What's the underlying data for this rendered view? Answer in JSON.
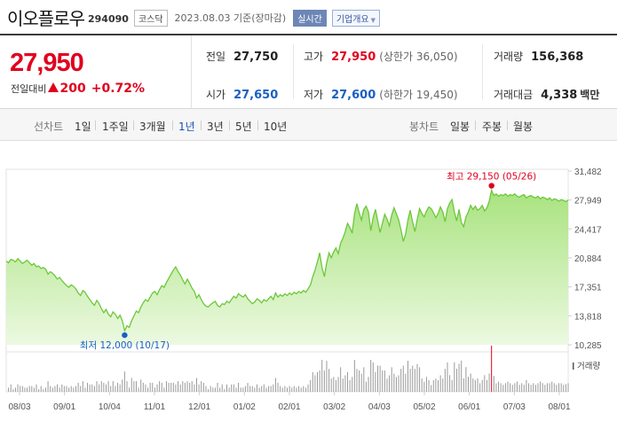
{
  "header": {
    "name": "이오플로우",
    "code": "294090",
    "market_badge": "코스닥",
    "as_of": "2023.08.03 기준(장마감)",
    "realtime_label": "실시간",
    "company_info_label": "기업개요"
  },
  "price": {
    "current": "27,950",
    "change_label": "전일대비",
    "change": "200",
    "change_pct": "+0.72%"
  },
  "stats": {
    "prev_close_label": "전일",
    "prev_close": "27,750",
    "high_label": "고가",
    "high": "27,950",
    "high_note": "(상한가 36,050)",
    "volume_label": "거래량",
    "volume": "156,368",
    "open_label": "시가",
    "open": "27,650",
    "low_label": "저가",
    "low": "27,600",
    "low_note": "(하한가 19,450)",
    "amount_label": "거래대금",
    "amount": "4,338",
    "amount_unit": "백만"
  },
  "toolbar": {
    "line_label": "선차트",
    "periods": [
      "1일",
      "1주일",
      "3개월",
      "1년",
      "3년",
      "5년",
      "10년"
    ],
    "active_period": "1년",
    "candle_label": "봉차트",
    "candles": [
      "일봉",
      "주봉",
      "월봉"
    ]
  },
  "colors": {
    "up": "#e1001e",
    "down": "#1a5fc4",
    "line": "#6cc83a",
    "area_top": "#a9e37f",
    "area_bottom": "#ecf9e1",
    "volume_bar": "#9a9a9a",
    "volume_peak": "#e1001e"
  },
  "chart_data": {
    "type": "area",
    "y_ticks": [
      "31,482",
      "27,949",
      "24,417",
      "20,884",
      "17,351",
      "13,818",
      "10,285"
    ],
    "y_values": [
      31482,
      27949,
      24417,
      20884,
      17351,
      13818,
      10285
    ],
    "ylim": [
      10285,
      31482
    ],
    "x_ticks": [
      "08/03",
      "09/01",
      "10/04",
      "11/01",
      "12/01",
      "01/02",
      "02/01",
      "03/02",
      "04/03",
      "05/02",
      "06/01",
      "07/03",
      "08/01"
    ],
    "volume_label": "거래량",
    "max_annotation": {
      "label": "최고",
      "value": "29,150",
      "date": "(05/26)"
    },
    "min_annotation": {
      "label": "최저",
      "value": "12,000",
      "date": "(10/17)"
    },
    "prices": [
      20500,
      20300,
      20700,
      20600,
      20400,
      20800,
      20500,
      20200,
      20400,
      20600,
      20300,
      20000,
      20200,
      19800,
      19900,
      19600,
      19700,
      19500,
      18900,
      19200,
      19000,
      18700,
      18300,
      18500,
      18100,
      17800,
      17500,
      17300,
      17600,
      17400,
      17100,
      16600,
      16300,
      16900,
      16700,
      16200,
      15800,
      15400,
      15100,
      15700,
      15300,
      14700,
      14200,
      14600,
      14000,
      13700,
      14300,
      14000,
      13500,
      13900,
      13200,
      12000,
      12600,
      12400,
      13200,
      13800,
      14400,
      14200,
      14900,
      15400,
      15800,
      15600,
      16100,
      16600,
      16800,
      16400,
      17000,
      17500,
      17300,
      17900,
      18400,
      18900,
      19400,
      19800,
      19200,
      18800,
      18200,
      17700,
      18300,
      17800,
      17200,
      16800,
      16000,
      16400,
      15800,
      15300,
      15000,
      14900,
      15200,
      15400,
      15600,
      15100,
      14900,
      15300,
      15200,
      15600,
      15400,
      15800,
      16200,
      16000,
      16500,
      16300,
      16100,
      16400,
      15900,
      15600,
      15300,
      15500,
      15900,
      15700,
      15400,
      15800,
      15600,
      15900,
      16200,
      15800,
      16600,
      16100,
      16400,
      16200,
      16500,
      16300,
      16600,
      16400,
      16700,
      16500,
      16800,
      16600,
      16900,
      16700,
      17100,
      17600,
      18600,
      19400,
      20400,
      21500,
      19700,
      18600,
      20300,
      21500,
      20900,
      21600,
      22100,
      21400,
      22700,
      23300,
      24100,
      25100,
      24600,
      23900,
      26300,
      27500,
      26400,
      25500,
      26800,
      27200,
      26500,
      24200,
      25800,
      26800,
      25400,
      24000,
      25100,
      26200,
      25600,
      24800,
      26100,
      27000,
      26300,
      25500,
      24300,
      22900,
      23800,
      25500,
      26700,
      25300,
      24100,
      25600,
      26900,
      26300,
      25900,
      26600,
      27100,
      26900,
      26400,
      25800,
      26300,
      27100,
      26500,
      25300,
      26900,
      27600,
      28000,
      26500,
      25400,
      26800,
      25200,
      24700,
      25900,
      26500,
      27300,
      26800,
      27200,
      26700,
      26900,
      27300,
      26600,
      27000,
      27800,
      29150,
      28500,
      28700,
      28400,
      28600,
      28500,
      28700,
      28400,
      28600,
      28500,
      28700,
      28400,
      28300,
      28500,
      28600,
      28200,
      28400,
      28500,
      28300,
      28200,
      28400,
      28100,
      28300,
      28200,
      28000,
      28200,
      27900,
      28100,
      28000,
      27800,
      28000,
      27900,
      27750,
      27950
    ]
  }
}
